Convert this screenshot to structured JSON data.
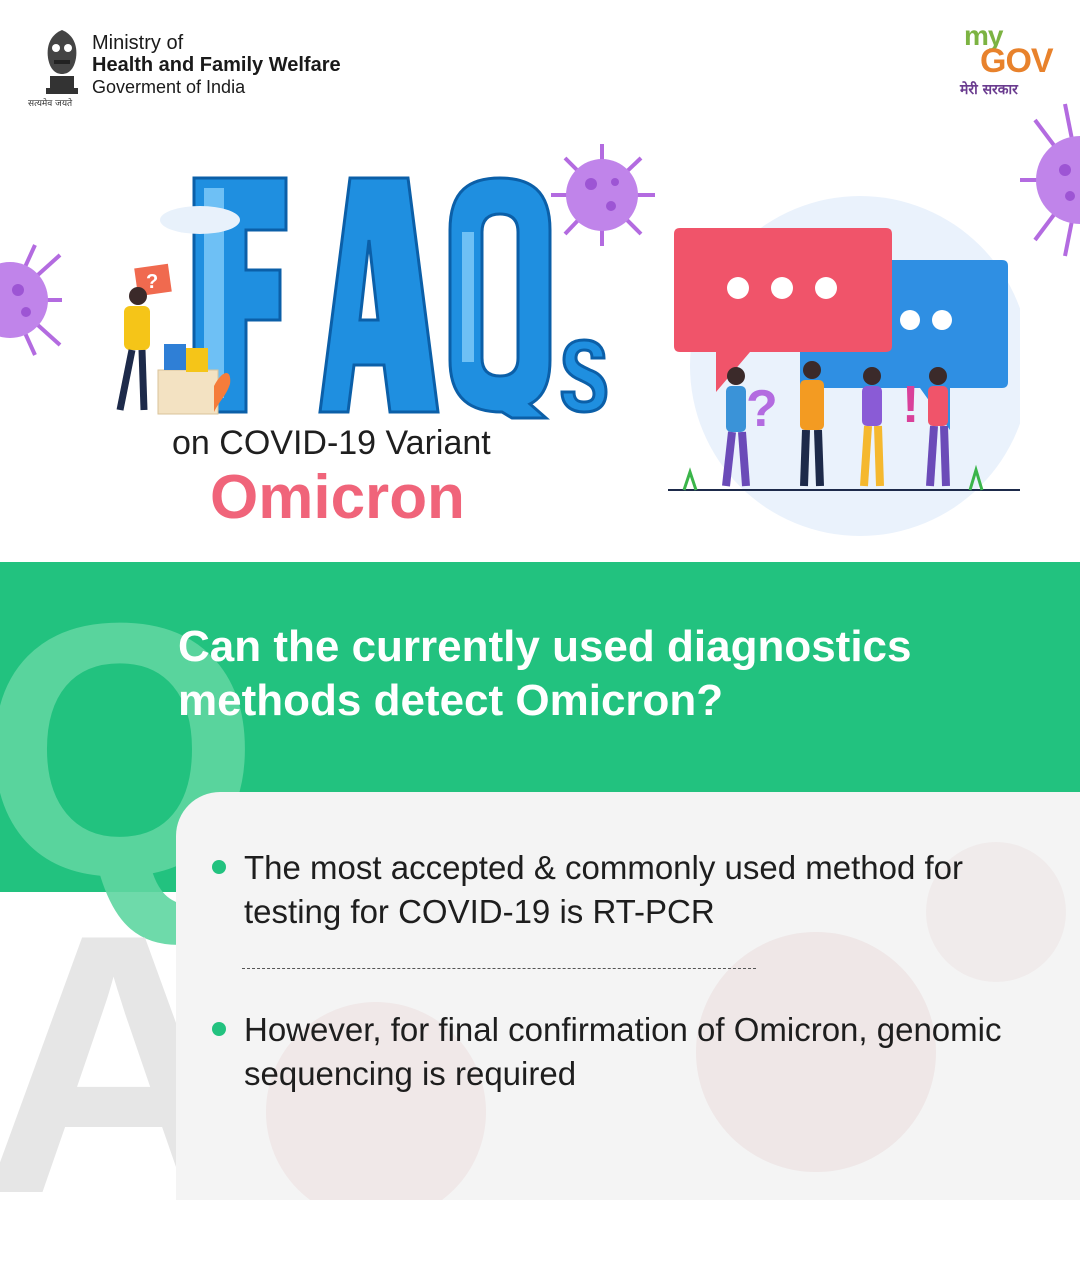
{
  "header": {
    "ministry_line1": "Ministry of",
    "ministry_line2": "Health and Family Welfare",
    "ministry_line3": "Goverment of India",
    "emblem_motto": "सत्यमेव जयते",
    "mygov_my": "my",
    "mygov_gov": "GOV",
    "mygov_tagline": "मेरी सरकार"
  },
  "hero": {
    "title": "FAQs",
    "subtitle": "on COVID-19 Variant",
    "variant": "Omicron"
  },
  "qa": {
    "q_letter": "Q",
    "a_letter": "A",
    "question": "Can the currently used diagnostics methods detect Omicron?",
    "answers": [
      "The most accepted & commonly used method for testing for COVID-19 is RT-PCR",
      "However, for final confirmation of Omicron, genomic sequencing is required"
    ]
  },
  "colors": {
    "green": "#22c27f",
    "pink": "#f0647a",
    "blue": "#1f8fe0",
    "virus_purple": "#b36be0"
  },
  "icons": [
    "emblem-icon",
    "virus-icon",
    "chat-bubble-icon",
    "people-illustration"
  ]
}
